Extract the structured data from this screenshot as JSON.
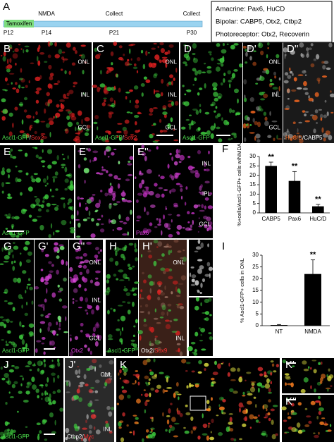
{
  "figure_label": "A",
  "timeline": {
    "drug": "Tamoxifen",
    "events": [
      "NMDA",
      "Collect",
      "Collect"
    ],
    "days": [
      "P12",
      "P14",
      "P21",
      "P30"
    ]
  },
  "legend_box": [
    "Amacrine: Pax6, HuCD",
    "Bipolar: CABP5, Otx2, Ctbp2",
    "Photoreceptor: Otx2, Recoverin"
  ],
  "panels": [
    {
      "label": "B",
      "layers": [
        "ONL",
        "INL",
        "GCL"
      ],
      "caption": [
        {
          "text": "Ascl1-GFP",
          "color": "#4ddc4d"
        },
        {
          "text": "/",
          "color": "#ffffff"
        },
        {
          "text": "Sox2",
          "color": "#ff3030"
        }
      ]
    },
    {
      "label": "C",
      "layers": [
        "ONL",
        "INL",
        "GCL"
      ],
      "caption": [
        {
          "text": "Ascl1-GFP",
          "color": "#4ddc4d"
        },
        {
          "text": "/",
          "color": "#ffffff"
        },
        {
          "text": "Sox2",
          "color": "#ff3030"
        }
      ]
    },
    {
      "label": "D",
      "caption": [
        {
          "text": "Ascl1-GFP",
          "color": "#4ddc4d"
        }
      ]
    },
    {
      "label": "D'",
      "layers": [
        "ONL",
        "INL",
        "GCL"
      ]
    },
    {
      "label": "D''",
      "caption": [
        {
          "text": "HuC/D",
          "color": "#ff7a30"
        },
        {
          "text": "/",
          "color": "#ffffff"
        },
        {
          "text": "CABP5",
          "color": "#ffffff"
        }
      ]
    },
    {
      "label": "E",
      "caption": [
        {
          "text": "Ascl1-GFP",
          "color": "#4ddc4d"
        }
      ]
    },
    {
      "label": "E'"
    },
    {
      "label": "E''",
      "layers": [
        "INL",
        "IPL",
        "GCL"
      ],
      "caption": [
        {
          "text": "Pax6",
          "color": "#e040e0"
        }
      ]
    },
    {
      "label": "G",
      "caption": [
        {
          "text": "Ascl1-GFP",
          "color": "#4ddc4d"
        }
      ]
    },
    {
      "label": "G'"
    },
    {
      "label": "G''",
      "layers": [
        "ONL",
        "INL",
        "GCL"
      ],
      "caption": [
        {
          "text": "Otx2",
          "color": "#e040e0"
        }
      ]
    },
    {
      "label": "H",
      "caption": [
        {
          "text": "Ascl1-GFP",
          "color": "#4ddc4d"
        }
      ]
    },
    {
      "label": "H'",
      "layers": [
        "ONL",
        "INL"
      ],
      "caption": [
        {
          "text": "Otx2",
          "color": "#ffffff"
        },
        {
          "text": "/",
          "color": "#ffffff"
        },
        {
          "text": "Sox9",
          "color": "#ff3030"
        }
      ]
    },
    {},
    {},
    {
      "label": "J",
      "caption": [
        {
          "text": "Ascl1-GFP",
          "color": "#4ddc4d"
        }
      ]
    },
    {
      "label": "J'",
      "layers": [
        "ONL",
        "INL"
      ],
      "caption": [
        {
          "text": "Ctbp2",
          "color": "#ffffff"
        },
        {
          "text": "/",
          "color": "#ffffff"
        },
        {
          "text": "Myc",
          "color": "#ff3030"
        }
      ]
    },
    {
      "label": "K"
    },
    {
      "label": "K'"
    },
    {
      "label": "K''"
    }
  ],
  "chart_data": [
    {
      "type": "bar",
      "label": "F",
      "ylabel": "%+cells/Ascl1-GFP+ cells w/NMDA",
      "categories": [
        "CABP5",
        "Pax6",
        "HuC/D"
      ],
      "values": [
        25,
        17,
        3.5
      ],
      "errors": [
        2,
        5,
        1
      ],
      "annotations": [
        "**",
        "**",
        "**"
      ],
      "color": "#000000",
      "ylim": [
        0,
        30
      ],
      "yticks": [
        0,
        5,
        10,
        15,
        20,
        25,
        30
      ]
    },
    {
      "type": "bar",
      "label": "I",
      "ylabel": "% Ascl1-GFP+ cells in ONL",
      "categories": [
        "NT",
        "NMDA"
      ],
      "values": [
        0.3,
        22
      ],
      "errors": [
        0.2,
        6
      ],
      "annotations": [
        null,
        "**"
      ],
      "color": "#000000",
      "ylim": [
        0,
        30
      ],
      "yticks": [
        0,
        5,
        10,
        15,
        20,
        25,
        30
      ]
    }
  ]
}
